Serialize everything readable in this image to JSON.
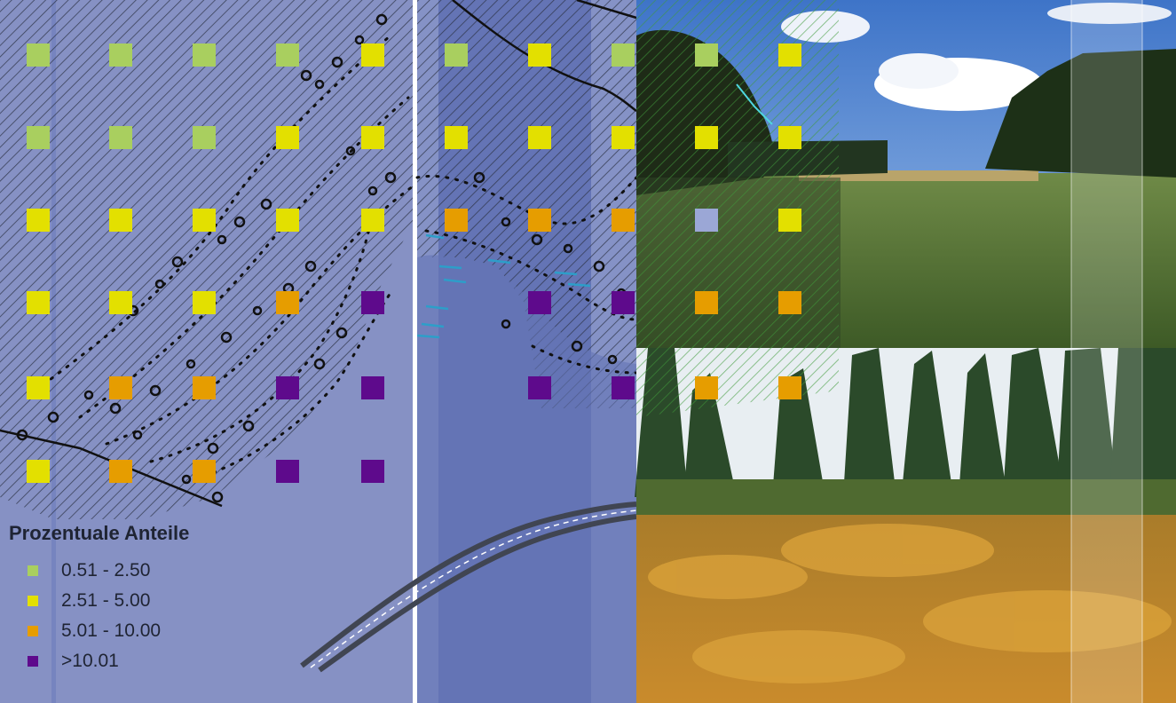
{
  "legend": {
    "title": "Prozentuale Anteile",
    "classes": [
      {
        "label": "0.51 - 2.50",
        "color": "#a9cf5f"
      },
      {
        "label": "2.51 - 5.00",
        "color": "#e3e000"
      },
      {
        "label": "5.01 - 10.00",
        "color": "#e69d00"
      },
      {
        "label": ">10.01",
        "color": "#5e0a8c"
      }
    ],
    "no_data_color": "#9ba7d6"
  },
  "grid": {
    "columns": 10,
    "rows": 6,
    "cells": [
      [
        1,
        1,
        1,
        1,
        2,
        1,
        2,
        1,
        1,
        2
      ],
      [
        1,
        1,
        1,
        2,
        2,
        2,
        2,
        2,
        2,
        2
      ],
      [
        2,
        2,
        2,
        2,
        2,
        3,
        3,
        3,
        0,
        2
      ],
      [
        2,
        2,
        2,
        3,
        4,
        null,
        4,
        4,
        3,
        3
      ],
      [
        2,
        3,
        3,
        4,
        4,
        null,
        4,
        4,
        3,
        3
      ],
      [
        2,
        3,
        3,
        4,
        4,
        null,
        null,
        null,
        null,
        null
      ]
    ]
  },
  "photos": [
    {
      "name": "meadow-photo",
      "description_icon": "meadow-field-icon"
    },
    {
      "name": "bog-photo",
      "description_icon": "moor-bog-icon"
    }
  ]
}
